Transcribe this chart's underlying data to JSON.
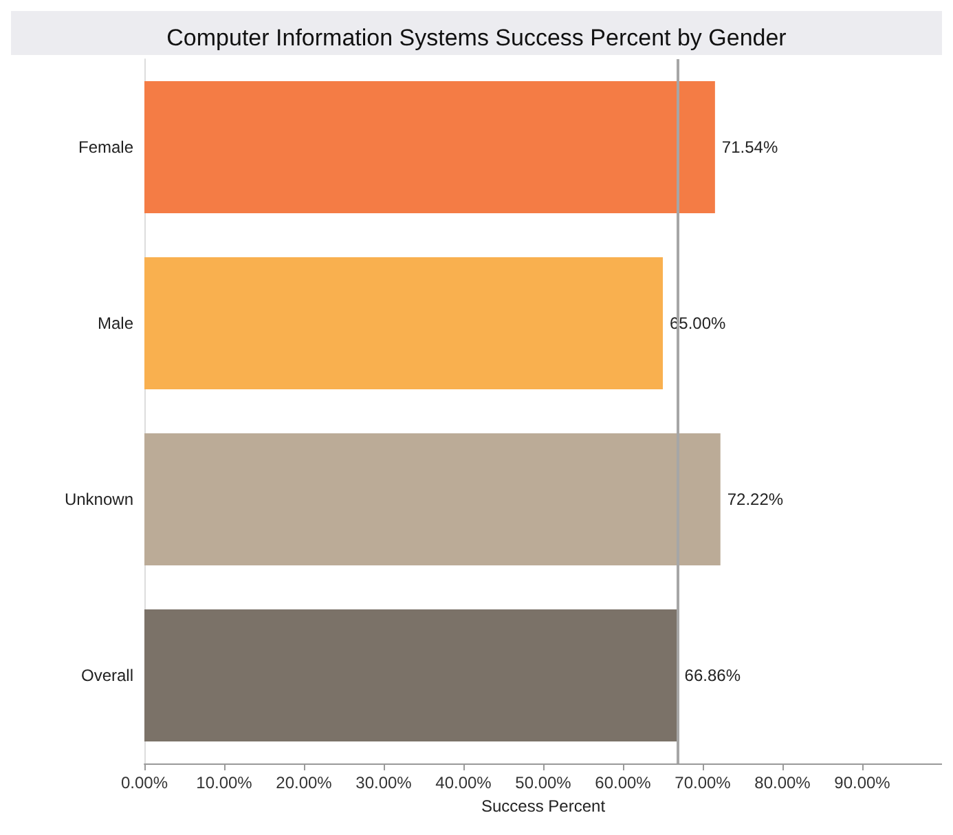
{
  "chart_data": {
    "type": "bar",
    "orientation": "horizontal",
    "title": "Computer Information Systems Success Percent by Gender",
    "xlabel": "Success Percent",
    "categories": [
      "Female",
      "Male",
      "Unknown",
      "Overall"
    ],
    "values": [
      71.54,
      65.0,
      72.22,
      66.86
    ],
    "colors": [
      "#f47c45",
      "#f9b04f",
      "#bbab97",
      "#7b7268"
    ],
    "value_labels": [
      "71.54%",
      "65.00%",
      "72.22%",
      "66.86%"
    ],
    "xlim": [
      0,
      100
    ],
    "xticks": [
      {
        "value": 0,
        "label": "0.00%"
      },
      {
        "value": 10,
        "label": "10.00%"
      },
      {
        "value": 20,
        "label": "20.00%"
      },
      {
        "value": 30,
        "label": "30.00%"
      },
      {
        "value": 40,
        "label": "40.00%"
      },
      {
        "value": 50,
        "label": "50.00%"
      },
      {
        "value": 60,
        "label": "60.00%"
      },
      {
        "value": 70,
        "label": "70.00%"
      },
      {
        "value": 80,
        "label": "80.00%"
      },
      {
        "value": 90,
        "label": "90.00%"
      }
    ],
    "ref_lines": [
      {
        "axis": "x",
        "value": 66.86,
        "color": "#a6a6a6"
      }
    ],
    "grid": false
  }
}
